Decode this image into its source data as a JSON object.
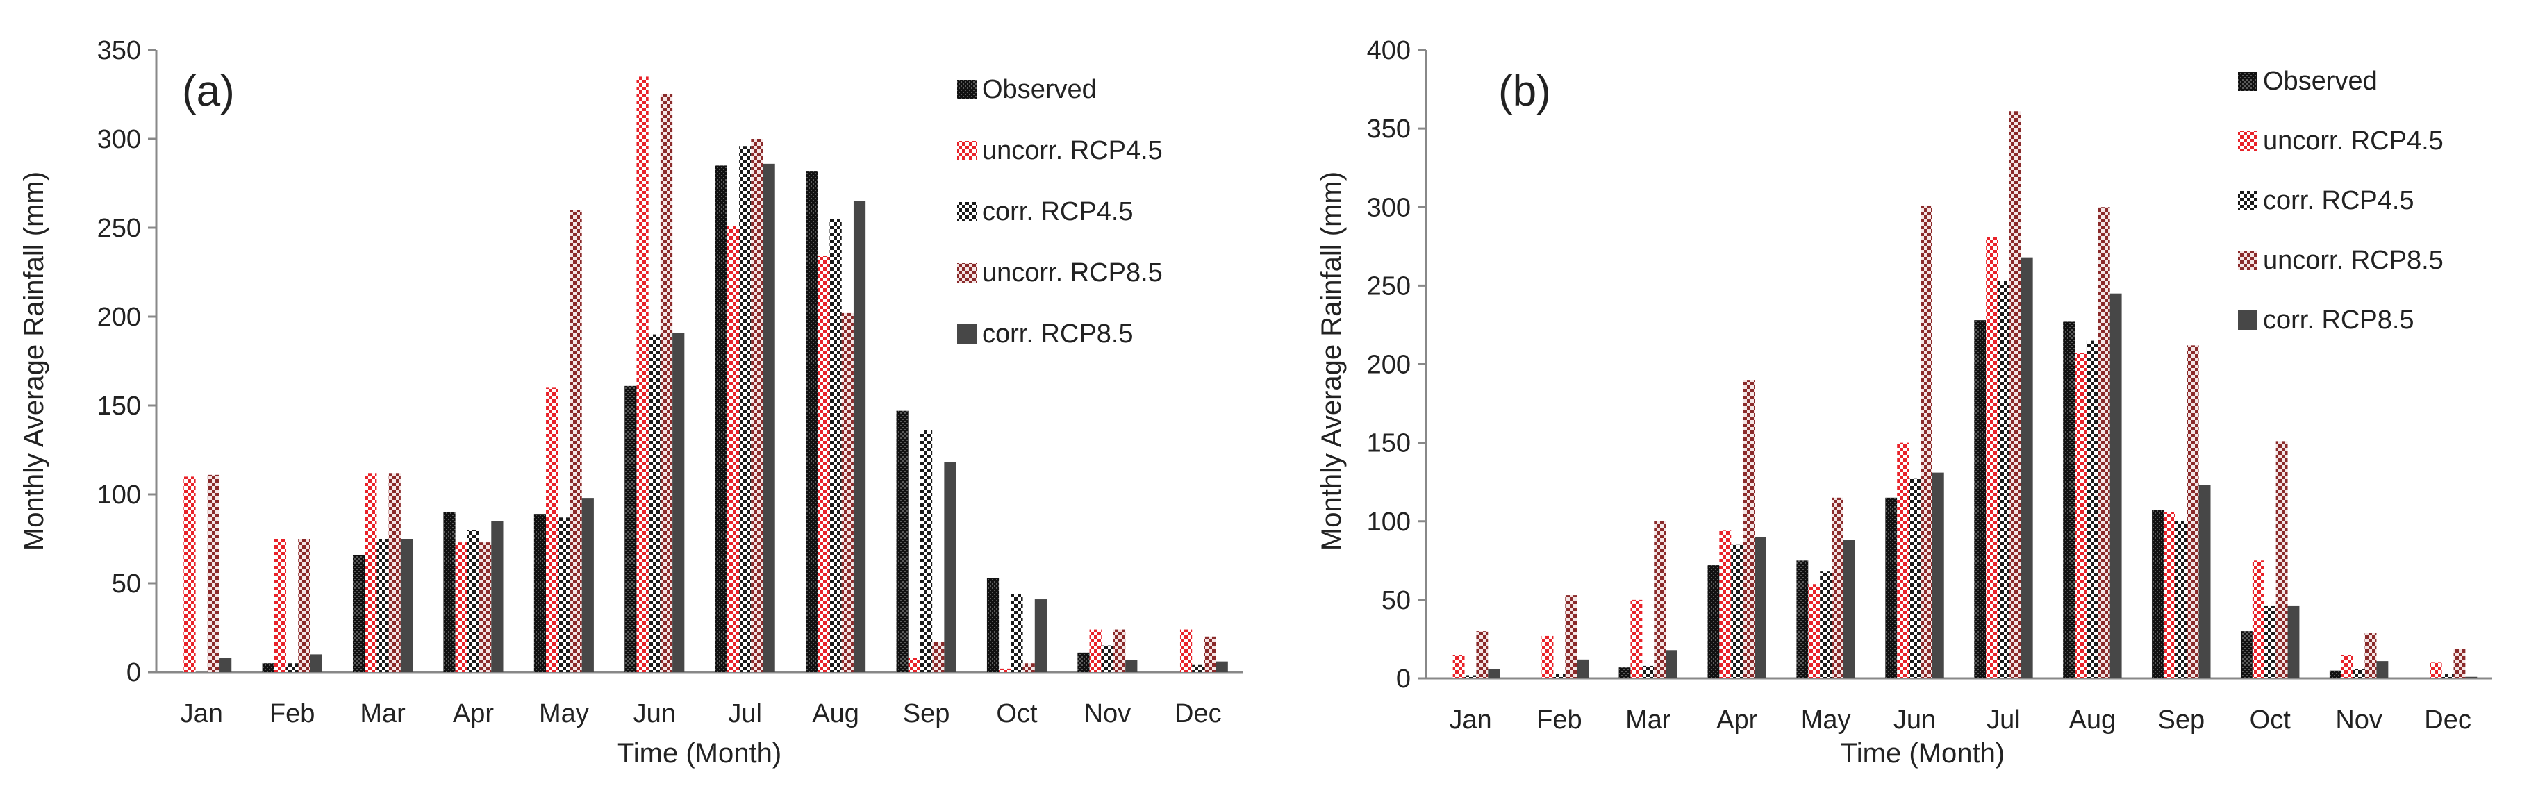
{
  "chart_data": [
    {
      "type": "bar",
      "panel_label": "(a)",
      "xlabel": "Time (Month)",
      "ylabel": "Monthly Average Rainfall (mm)",
      "ylim": [
        0,
        350
      ],
      "yticks": [
        0,
        50,
        100,
        150,
        200,
        250,
        300,
        350
      ],
      "grid": false,
      "legend_position": "top-right",
      "categories": [
        "Jan",
        "Feb",
        "Mar",
        "Apr",
        "May",
        "Jun",
        "Jul",
        "Aug",
        "Sep",
        "Oct",
        "Nov",
        "Dec"
      ],
      "series": [
        {
          "name": "Observed",
          "values": [
            0,
            5,
            66,
            90,
            89,
            161,
            285,
            282,
            147,
            53,
            11,
            0
          ]
        },
        {
          "name": "uncorr. RCP4.5",
          "values": [
            110,
            75,
            112,
            73,
            160,
            335,
            251,
            234,
            8,
            2,
            24,
            24
          ]
        },
        {
          "name": "corr. RCP4.5",
          "values": [
            0,
            5,
            75,
            80,
            87,
            190,
            296,
            255,
            136,
            44,
            15,
            4
          ]
        },
        {
          "name": "uncorr. RCP8.5",
          "values": [
            111,
            75,
            112,
            73,
            260,
            325,
            300,
            202,
            17,
            5,
            24,
            20
          ]
        },
        {
          "name": "corr. RCP8.5",
          "values": [
            8,
            10,
            75,
            85,
            98,
            191,
            286,
            265,
            118,
            41,
            7,
            6
          ]
        }
      ]
    },
    {
      "type": "bar",
      "panel_label": "(b)",
      "xlabel": "Time (Month)",
      "ylabel": "Monthly Average Rainfall (mm)",
      "ylim": [
        0,
        400
      ],
      "yticks": [
        0,
        50,
        100,
        150,
        200,
        250,
        300,
        350,
        400
      ],
      "grid": false,
      "legend_position": "top-right",
      "categories": [
        "Jan",
        "Feb",
        "Mar",
        "Apr",
        "May",
        "Jun",
        "Jul",
        "Aug",
        "Sep",
        "Oct",
        "Nov",
        "Dec"
      ],
      "series": [
        {
          "name": "Observed",
          "values": [
            0,
            0,
            7,
            72,
            75,
            115,
            228,
            227,
            107,
            30,
            5,
            0
          ]
        },
        {
          "name": "uncorr. RCP4.5",
          "values": [
            15,
            27,
            50,
            94,
            60,
            150,
            281,
            207,
            106,
            75,
            15,
            10
          ]
        },
        {
          "name": "corr. RCP4.5",
          "values": [
            2,
            3,
            8,
            85,
            68,
            127,
            253,
            215,
            100,
            46,
            6,
            3
          ]
        },
        {
          "name": "uncorr. RCP8.5",
          "values": [
            30,
            53,
            100,
            190,
            115,
            301,
            361,
            300,
            212,
            151,
            29,
            19
          ]
        },
        {
          "name": "corr. RCP8.5",
          "values": [
            6,
            12,
            18,
            90,
            88,
            131,
            268,
            245,
            123,
            46,
            11,
            1
          ]
        }
      ]
    }
  ],
  "series_styles": [
    {
      "fill": "#111111",
      "pattern": "dense-black-dots"
    },
    {
      "fill": "#e8232a",
      "pattern": "red-white-checker"
    },
    {
      "fill": "#1a1a1a",
      "pattern": "black-white-checker"
    },
    {
      "fill": "#8a2a2a",
      "pattern": "darkred-white-checker"
    },
    {
      "fill": "#474747",
      "pattern": "solid-dark-grey"
    }
  ]
}
